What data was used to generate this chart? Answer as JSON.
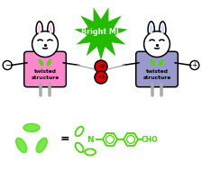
{
  "bg_color": "#ffffff",
  "green_color": "#44dd00",
  "burst_color": "#22bb00",
  "pink_color": "#ff88cc",
  "purple_color": "#9999cc",
  "red_color": "#dd0000",
  "black": "#000000",
  "white": "#ffffff",
  "light_pink": "#ffccee",
  "light_purple": "#ccddff",
  "burst_text": "Bright ML",
  "left_label": "twisted\nstructure",
  "right_label": "twisted\nstructure",
  "cho_label": "CHO",
  "minus_sign": "⊖",
  "plus_sign": "⊕"
}
